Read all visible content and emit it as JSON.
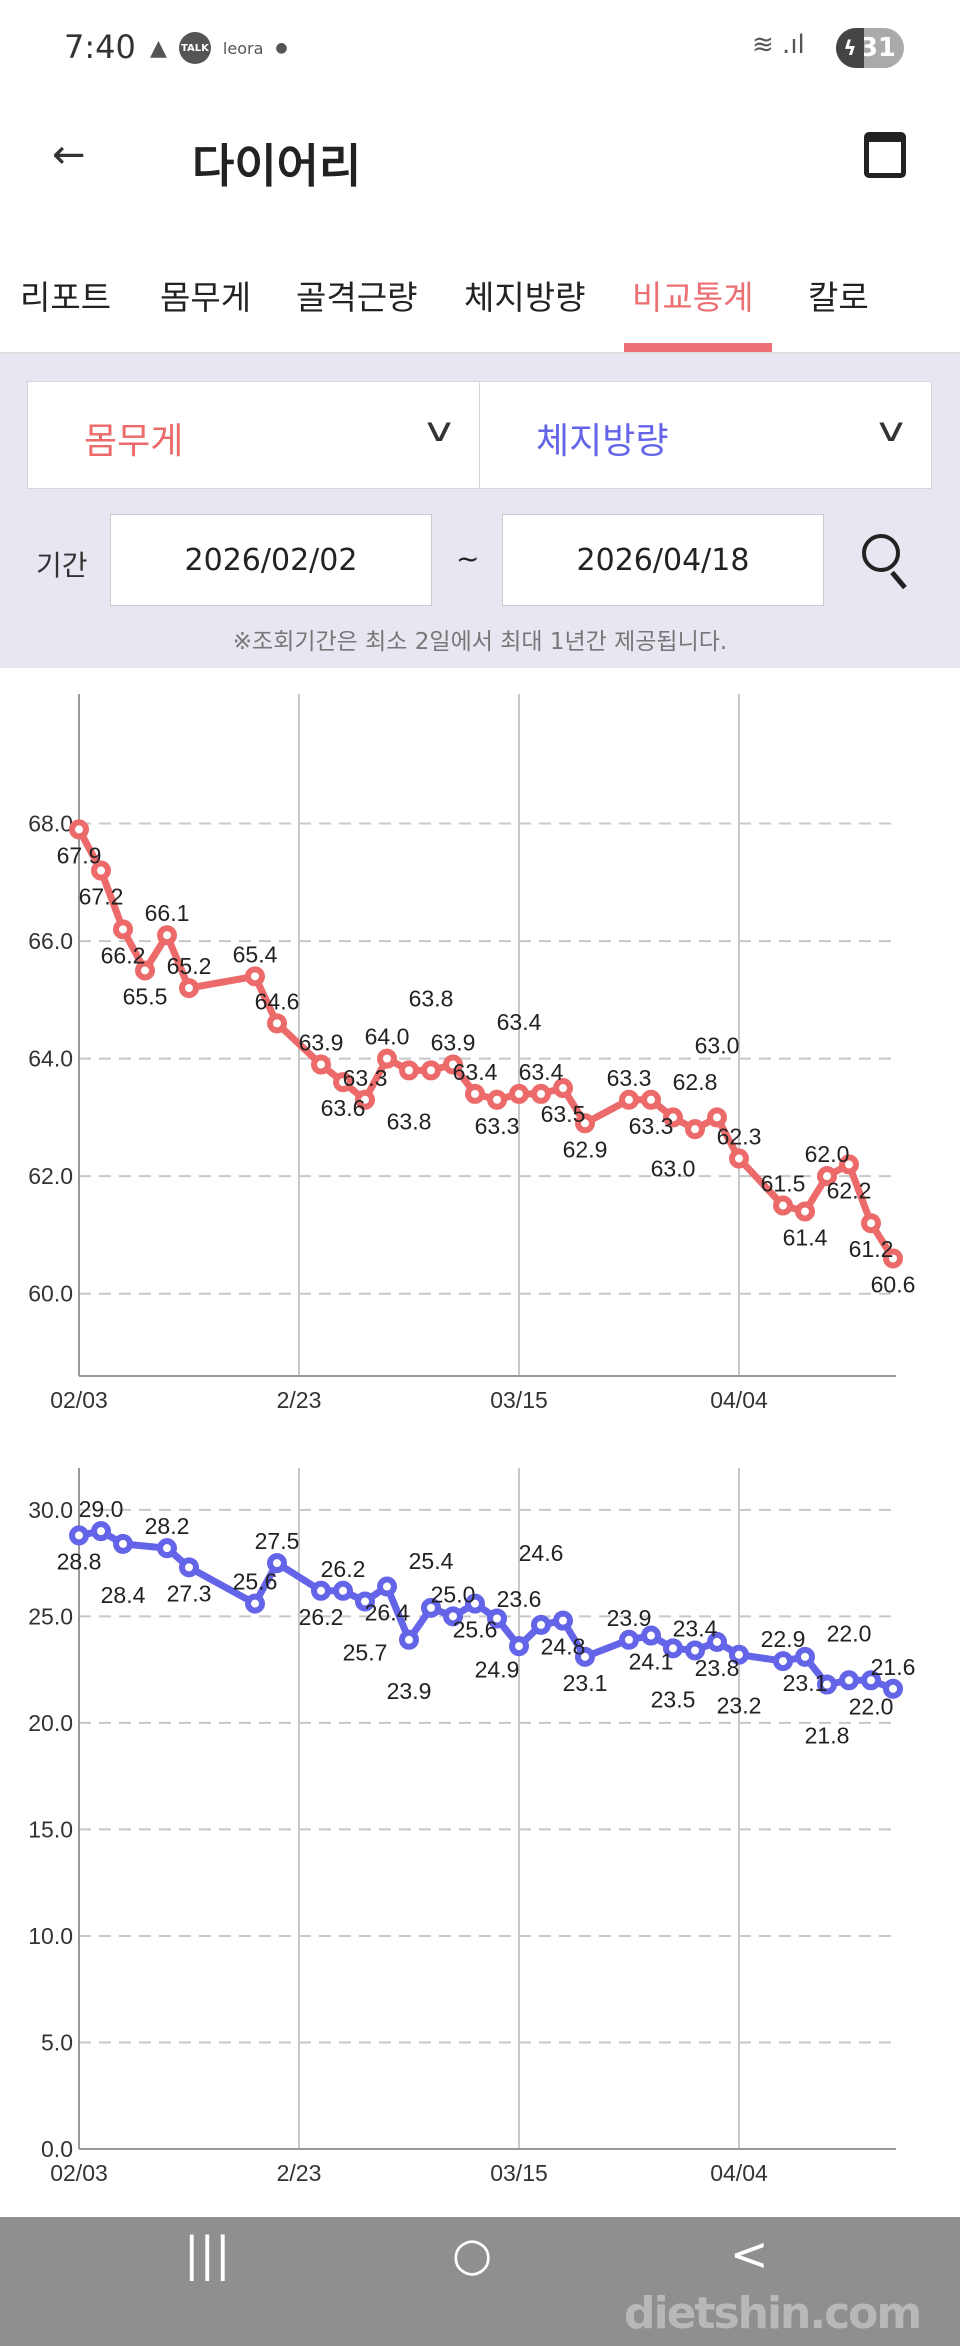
{
  "status_bar": {
    "time": "7:40",
    "notif_talk": "TALK",
    "notif_app": "leora",
    "battery": "31"
  },
  "header": {
    "title": "다이어리",
    "back_icon": "arrow-left-icon",
    "calendar_icon": "calendar-icon"
  },
  "tabs": [
    {
      "label": "리포트",
      "active": false
    },
    {
      "label": "몸무게",
      "active": false
    },
    {
      "label": "골격근량",
      "active": false
    },
    {
      "label": "체지방량",
      "active": false
    },
    {
      "label": "비교통계",
      "active": true
    },
    {
      "label": "칼로",
      "active": false
    }
  ],
  "filter": {
    "metric1": "몸무게",
    "metric2": "체지방량",
    "period_label": "기간",
    "start_date": "2026/02/02",
    "separator": "~",
    "end_date": "2026/04/18",
    "notice": "※조회기간은 최소 2일에서 최대 1년간 제공됩니다."
  },
  "colors": {
    "accent": "#ec6f73",
    "weight": "#ec6a6a",
    "body_fat": "#6464e8",
    "filter_bg": "#e8e6f0"
  },
  "nav": {
    "recent": "|||",
    "home": "○",
    "back": "<"
  },
  "watermark": "dietshin.com",
  "chart_data": [
    {
      "type": "line",
      "series_key": "weight",
      "year": 2026,
      "x_ticks": [
        "02/03",
        "2/23",
        "03/15",
        "04/04"
      ],
      "y_ticks": [
        "60.0",
        "62.0",
        "64.0",
        "66.0",
        "68.0"
      ],
      "ylim": [
        58.6,
        70
      ],
      "grid": true,
      "x": [
        "02/03",
        "02/05",
        "02/07",
        "02/09",
        "02/11",
        "02/13",
        "02/19",
        "02/21",
        "02/25",
        "02/27",
        "03/01",
        "03/03",
        "03/05",
        "03/07",
        "03/09",
        "03/11",
        "03/13",
        "03/15",
        "03/17",
        "03/19",
        "03/21",
        "03/25",
        "03/27",
        "03/29",
        "03/31",
        "04/02",
        "04/04",
        "04/08",
        "04/10",
        "04/12",
        "04/14",
        "04/16",
        "04/18"
      ],
      "values": [
        67.9,
        67.2,
        66.2,
        65.5,
        66.1,
        65.2,
        65.4,
        64.6,
        63.9,
        63.6,
        63.3,
        64.0,
        63.8,
        63.8,
        63.9,
        63.4,
        63.3,
        63.4,
        63.4,
        63.5,
        62.9,
        63.3,
        63.3,
        63.0,
        62.8,
        63.0,
        62.3,
        61.5,
        61.4,
        62.0,
        62.2,
        61.2,
        60.6
      ]
    },
    {
      "type": "line",
      "series_key": "body_fat",
      "year": 2026,
      "x_ticks": [
        "02/03",
        "2/23",
        "03/15",
        "04/04"
      ],
      "y_ticks": [
        "0.0",
        "5.0",
        "10.0",
        "15.0",
        "20.0",
        "25.0",
        "30.0"
      ],
      "ylim": [
        0,
        31.4
      ],
      "grid": true,
      "x": [
        "02/03",
        "02/05",
        "02/07",
        "02/11",
        "02/13",
        "02/19",
        "02/21",
        "02/25",
        "02/27",
        "03/01",
        "03/03",
        "03/05",
        "03/07",
        "03/09",
        "03/11",
        "03/13",
        "03/15",
        "03/17",
        "03/19",
        "03/21",
        "03/25",
        "03/27",
        "03/29",
        "03/31",
        "04/02",
        "04/04",
        "04/08",
        "04/10",
        "04/12",
        "04/14",
        "04/16",
        "04/18"
      ],
      "values": [
        28.8,
        29.0,
        28.4,
        28.2,
        27.3,
        25.6,
        27.5,
        26.2,
        26.2,
        25.7,
        26.4,
        23.9,
        25.4,
        25.0,
        25.6,
        24.9,
        23.6,
        24.6,
        24.8,
        23.1,
        23.9,
        24.1,
        23.5,
        23.4,
        23.8,
        23.2,
        22.9,
        23.1,
        21.8,
        22.0,
        22.0,
        21.6
      ]
    }
  ]
}
